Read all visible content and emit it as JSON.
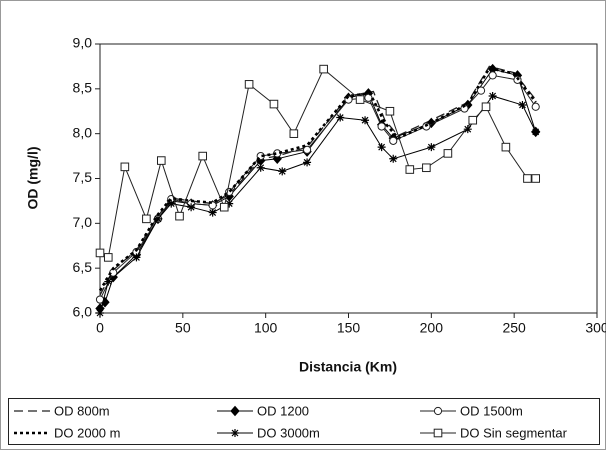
{
  "chart_data": {
    "type": "line",
    "x_label": "Distancia (Km)",
    "y_label": "OD (mg/l)",
    "xlim": [
      0,
      300
    ],
    "xticks": [
      0,
      50,
      100,
      150,
      200,
      250,
      300
    ],
    "ylim": [
      6,
      9
    ],
    "yticks": [
      {
        "value": 6,
        "label": "6,0"
      },
      {
        "value": 6.5,
        "label": "6,5"
      },
      {
        "value": 7,
        "label": "7,0"
      },
      {
        "value": 7.5,
        "label": "7,5"
      },
      {
        "value": 8,
        "label": "8,0"
      },
      {
        "value": 8.5,
        "label": "8,5"
      },
      {
        "value": 9,
        "label": "9,0"
      }
    ],
    "grid": false,
    "legend": "bottom",
    "series": [
      {
        "name": "OD 800m",
        "color": "#222222",
        "line_style": "dashed",
        "marker": "none",
        "x": [
          0,
          8,
          22,
          35,
          43,
          55,
          68,
          78,
          97,
          107,
          125,
          150,
          165,
          172,
          180,
          200,
          222,
          235,
          250,
          263
        ],
        "values": [
          6.2,
          6.48,
          6.7,
          7.08,
          7.28,
          7.25,
          7.22,
          7.32,
          7.72,
          7.75,
          7.85,
          8.42,
          8.47,
          8.15,
          7.98,
          8.15,
          8.35,
          8.75,
          8.68,
          8.38
        ]
      },
      {
        "name": "OD 1200",
        "color": "#000000",
        "line_style": "solid",
        "marker": "diamond",
        "x": [
          0,
          3,
          8,
          22,
          35,
          43,
          55,
          68,
          78,
          97,
          107,
          125,
          150,
          162,
          170,
          177,
          200,
          222,
          237,
          252,
          263
        ],
        "values": [
          6.05,
          6.12,
          6.4,
          6.65,
          7.05,
          7.25,
          7.22,
          7.2,
          7.3,
          7.7,
          7.72,
          7.8,
          8.4,
          8.45,
          8.1,
          7.95,
          8.12,
          8.32,
          8.72,
          8.65,
          8.02
        ]
      },
      {
        "name": "OD 1500m",
        "color": "#222222",
        "line_style": "solid",
        "marker": "circle",
        "x": [
          0,
          8,
          22,
          35,
          43,
          55,
          68,
          78,
          97,
          107,
          125,
          150,
          162,
          170,
          177,
          197,
          220,
          230,
          237,
          252,
          263
        ],
        "values": [
          6.15,
          6.45,
          6.68,
          7.05,
          7.27,
          7.22,
          7.2,
          7.35,
          7.75,
          7.78,
          7.82,
          8.38,
          8.4,
          8.08,
          7.92,
          8.08,
          8.28,
          8.48,
          8.65,
          8.6,
          8.3
        ]
      },
      {
        "name": "DO 2000 m",
        "color": "#000000",
        "line_style": "dotted",
        "marker": "none",
        "x": [
          0,
          8,
          22,
          35,
          43,
          55,
          68,
          78,
          97,
          107,
          125,
          150,
          163,
          172,
          180,
          200,
          222,
          235,
          250,
          263
        ],
        "values": [
          6.25,
          6.5,
          6.7,
          7.1,
          7.28,
          7.25,
          7.23,
          7.35,
          7.75,
          7.78,
          7.87,
          8.42,
          8.45,
          8.12,
          7.95,
          8.12,
          8.33,
          8.73,
          8.67,
          8.35
        ]
      },
      {
        "name": "DO 3000m",
        "color": "#000000",
        "line_style": "solid",
        "marker": "star",
        "x": [
          0,
          5,
          22,
          35,
          43,
          55,
          68,
          78,
          97,
          110,
          125,
          145,
          160,
          170,
          177,
          200,
          222,
          237,
          255,
          263
        ],
        "values": [
          6.0,
          6.35,
          6.62,
          7.05,
          7.22,
          7.18,
          7.12,
          7.22,
          7.62,
          7.58,
          7.68,
          8.18,
          8.15,
          7.85,
          7.72,
          7.85,
          8.05,
          8.42,
          8.32,
          8.02
        ]
      },
      {
        "name": "DO Sin segmentar",
        "color": "#222222",
        "line_style": "solid",
        "marker": "square",
        "x": [
          0,
          5,
          15,
          28,
          37,
          48,
          62,
          75,
          90,
          105,
          117,
          135,
          157,
          175,
          187,
          197,
          210,
          225,
          233,
          245,
          258,
          263
        ],
        "values": [
          6.67,
          6.62,
          7.63,
          7.05,
          7.7,
          7.08,
          7.75,
          7.18,
          8.55,
          8.33,
          8.0,
          8.72,
          8.38,
          8.25,
          7.6,
          7.62,
          7.78,
          8.15,
          8.3,
          7.85,
          7.5,
          7.5
        ]
      }
    ]
  }
}
